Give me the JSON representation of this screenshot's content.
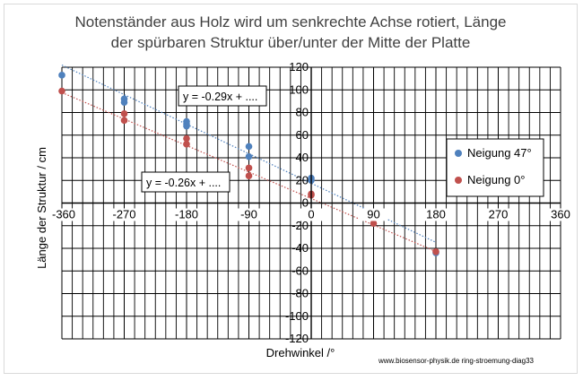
{
  "chart_data": {
    "type": "scatter",
    "title_lines": [
      "Notenständer aus Holz wird um senkrechte Achse rotiert, Länge",
      "der spürbaren Struktur über/unter der Mitte der Platte"
    ],
    "xlabel": "Drehwinkel /°",
    "ylabel": "Länge der Struktur / cm",
    "xlim": [
      -360,
      360
    ],
    "ylim": [
      -120,
      120
    ],
    "xticks": [
      -360,
      -270,
      -180,
      -90,
      0,
      90,
      180,
      270,
      360
    ],
    "yticks": [
      -120,
      -100,
      -80,
      -60,
      -40,
      -20,
      0,
      20,
      40,
      60,
      80,
      100,
      120
    ],
    "grid": "major+minor",
    "legend_position": "right",
    "series": [
      {
        "name": "Neigung 47°",
        "color": "#4f81bd",
        "x": [
          -360,
          -270,
          -270,
          -180,
          -180,
          -180,
          -90,
          -90,
          0,
          0,
          180
        ],
        "y": [
          113,
          92,
          89,
          72,
          70,
          68,
          50,
          41,
          22,
          20,
          -44
        ]
      },
      {
        "name": "Neigung 0°",
        "color": "#c0504d",
        "x": [
          -360,
          -270,
          -270,
          -180,
          -180,
          -90,
          -90,
          0,
          0,
          90,
          180
        ],
        "y": [
          99,
          79,
          73,
          57,
          52,
          31,
          24,
          8,
          7,
          -18,
          -43
        ]
      }
    ],
    "trendlines": [
      {
        "series": 0,
        "label": "y = -0.29x + ....",
        "color": "#4f81bd",
        "slope": -0.29,
        "intercept": 17.5,
        "x_range": [
          -360,
          180
        ]
      },
      {
        "series": 1,
        "label": "y = -0.26x + ....",
        "color": "#c0504d",
        "slope": -0.26,
        "intercept": 4,
        "x_range": [
          -360,
          180
        ]
      }
    ],
    "source_note": "www.biosensor-physik.de ring-stroemung-diag33"
  }
}
